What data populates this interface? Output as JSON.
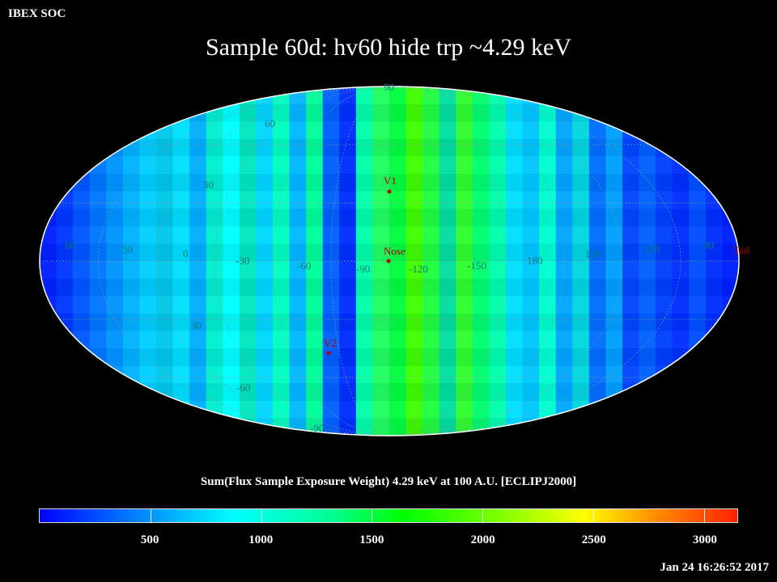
{
  "header": {
    "corner_label": "IBEX SOC",
    "title": "Sample 60d: hv60 hide trp ~4.29 keV"
  },
  "map": {
    "latitude_labels_top": [
      "90",
      "60",
      "30"
    ],
    "latitude_labels_bottom": [
      "30",
      "-60",
      "-90"
    ],
    "longitude_labels": [
      "60",
      "30",
      "0",
      "-30",
      "-60",
      "-90",
      "-120",
      "-150",
      "180",
      "150",
      "120",
      "90"
    ],
    "markers": [
      {
        "label": "V1"
      },
      {
        "label": "Nose"
      },
      {
        "label": "V2"
      },
      {
        "label": "Tail"
      }
    ],
    "colors": {
      "grid_label": "#0a7a7a",
      "marker": "#b00000"
    }
  },
  "colorbar": {
    "title": "Sum(Flux Sample Exposure Weight)  4.29 keV at 100 A.U. [ECLIPJ2000]",
    "ticks": [
      "500",
      "1000",
      "1500",
      "2000",
      "2500",
      "3000"
    ],
    "range": [
      0,
      3150
    ]
  },
  "footer": {
    "timestamp": "Jan 24 16:26:52 2017"
  }
}
